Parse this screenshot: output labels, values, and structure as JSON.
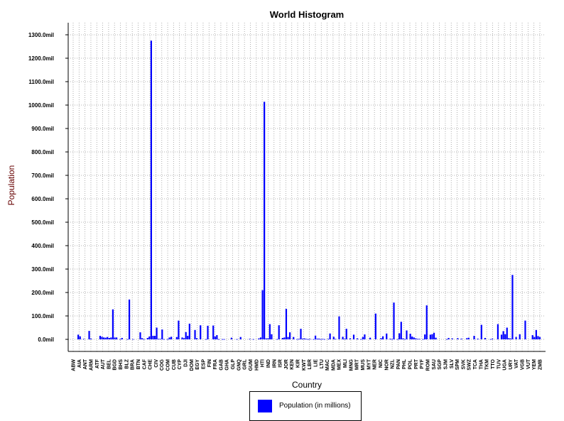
{
  "colors": {
    "bar": "#0000ff",
    "axis_title": "#660000"
  },
  "chart_data": {
    "type": "bar",
    "title": "World Histogram",
    "xlabel": "Country",
    "ylabel": "Population",
    "ylim": [
      0,
      1350
    ],
    "grid": true,
    "legend_position": "bottom",
    "yticks": [
      0,
      100,
      200,
      300,
      400,
      500,
      600,
      700,
      800,
      900,
      1000,
      1100,
      1200,
      1300
    ],
    "ytick_labels": [
      "0.0mil",
      "100.0mil",
      "200.0mil",
      "300.0mil",
      "400.0mil",
      "500.0mil",
      "600.0mil",
      "700.0mil",
      "800.0mil",
      "900.0mil",
      "1000.0mil",
      "1100.0mil",
      "1200.0mil",
      "1300.0mil"
    ],
    "tick_labels": [
      "ABW",
      "AIA",
      "ANT",
      "ARM",
      "ATF",
      "AUT",
      "BEL",
      "BGD",
      "BHS",
      "BLZ",
      "BRA",
      "BTN",
      "CAF",
      "CHE",
      "CIV",
      "COG",
      "COM",
      "CUB",
      "CYP",
      "DJI",
      "DOM",
      "EGY",
      "ESP",
      "FIN",
      "FRA",
      "GAB",
      "GHA",
      "GLP",
      "GNQ",
      "GRL",
      "GUM",
      "HMD",
      "HTI",
      "IND",
      "IRN",
      "ISR",
      "JOR",
      "KEN",
      "KIR",
      "KWT",
      "LBR",
      "LIE",
      "LTU",
      "MAC",
      "MDA",
      "MEX",
      "MLI",
      "MNG",
      "MRT",
      "MUS",
      "MYT",
      "NER",
      "NIC",
      "NOR",
      "NZL",
      "PAN",
      "PHL",
      "POL",
      "PRT",
      "PYF",
      "ROM",
      "SAU",
      "SGP",
      "SJM",
      "SLV",
      "SPM",
      "SVK",
      "SWZ",
      "TCA",
      "THA",
      "TKM",
      "TTO",
      "TUV",
      "UGA",
      "URY",
      "VAT",
      "VGB",
      "VUT",
      "YEM",
      "ZMB"
    ],
    "bar_values": [
      0,
      0,
      20,
      13,
      0,
      2,
      0,
      0,
      36,
      3,
      0,
      0,
      0,
      0,
      15,
      11,
      8,
      7,
      10,
      6,
      8,
      128,
      8,
      8,
      0,
      1,
      6,
      0,
      0,
      1,
      170,
      0,
      1,
      0,
      0,
      0,
      30,
      5,
      1,
      0,
      6,
      12,
      1275,
      15,
      15,
      50,
      2,
      2,
      42,
      1,
      0,
      1,
      8,
      11,
      0,
      0,
      10,
      80,
      0,
      8,
      5,
      31,
      15,
      67,
      0,
      0,
      40,
      5,
      0,
      60,
      0,
      0,
      1,
      58,
      0,
      0,
      59,
      12,
      18,
      1,
      0,
      1,
      1,
      0,
      0,
      0,
      7,
      0,
      0,
      1,
      0,
      10,
      0,
      0,
      0,
      0,
      2,
      0,
      1,
      0,
      0,
      4,
      8,
      210,
      1014,
      4,
      4,
      65,
      22,
      0,
      0,
      1,
      60,
      0,
      6,
      8,
      130,
      10,
      30,
      0,
      10,
      0,
      1,
      2,
      45,
      3,
      4,
      2,
      1,
      2,
      0,
      1,
      16,
      3,
      3,
      1,
      2,
      1,
      0,
      2,
      25,
      0,
      11,
      2,
      0,
      98,
      0,
      11,
      2,
      45,
      0,
      4,
      0,
      20,
      0,
      4,
      0,
      1,
      10,
      21,
      0,
      0,
      7,
      0,
      0,
      110,
      0,
      0,
      5,
      13,
      0,
      25,
      0,
      3,
      1,
      157,
      0,
      1,
      26,
      75,
      4,
      1,
      38,
      0,
      24,
      12,
      8,
      4,
      2,
      2,
      0,
      1,
      21,
      145,
      0,
      20,
      22,
      28,
      7,
      0,
      0,
      0,
      0,
      0,
      1,
      6,
      0,
      4,
      0,
      0,
      5,
      0,
      3,
      0,
      0,
      5,
      7,
      0,
      0,
      15,
      0,
      3,
      0,
      62,
      0,
      6,
      0,
      0,
      1,
      3,
      0,
      0,
      65,
      0,
      20,
      35,
      22,
      50,
      5,
      3,
      275,
      0,
      10,
      0,
      22,
      0,
      0,
      80,
      0,
      0,
      0,
      18,
      10,
      40,
      14,
      10
    ]
  },
  "legend": {
    "label": "Population (in millions)"
  }
}
